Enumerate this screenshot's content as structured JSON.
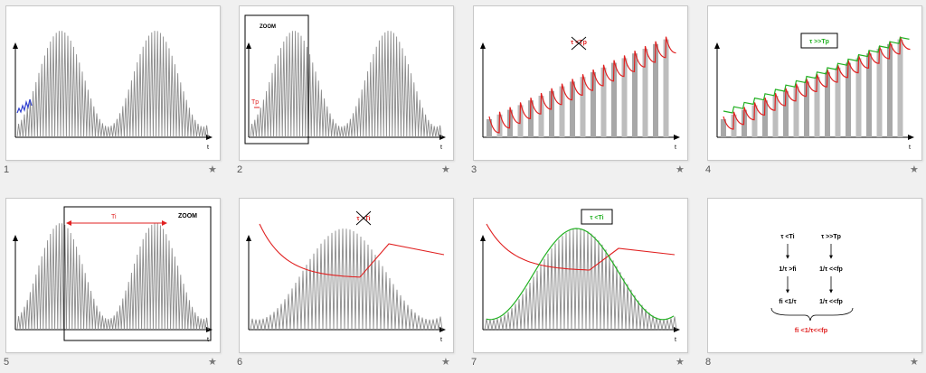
{
  "slides": [
    {
      "number": "1",
      "labels": {
        "axis": "t"
      }
    },
    {
      "number": "2",
      "labels": {
        "axis": "t",
        "zoom": "ZOOM",
        "period": "Tp"
      }
    },
    {
      "number": "3",
      "labels": {
        "axis": "t",
        "cond": "τ <Tp"
      }
    },
    {
      "number": "4",
      "labels": {
        "axis": "t",
        "cond": "τ >>Tp"
      }
    },
    {
      "number": "5",
      "labels": {
        "axis": "t",
        "zoom": "ZOOM",
        "period": "Ti"
      }
    },
    {
      "number": "6",
      "labels": {
        "axis": "t",
        "cond": "τ >Ti"
      }
    },
    {
      "number": "7",
      "labels": {
        "axis": "t",
        "cond": "τ <Ti"
      }
    },
    {
      "number": "8",
      "labels": {
        "l1": "τ <Ti",
        "r1": "τ >>Tp",
        "l2": "1/τ >fi",
        "r2": "1/τ <<fp",
        "l3": "fi <1/τ",
        "r3": "1/τ <<fp",
        "result": "fi <1/τ<<fp"
      }
    }
  ],
  "star_icon": "★",
  "colors": {
    "signal": "#8c8c8c",
    "red": "#e02020",
    "green": "#22b022",
    "blue": "#3040d0",
    "text": "#111111"
  }
}
